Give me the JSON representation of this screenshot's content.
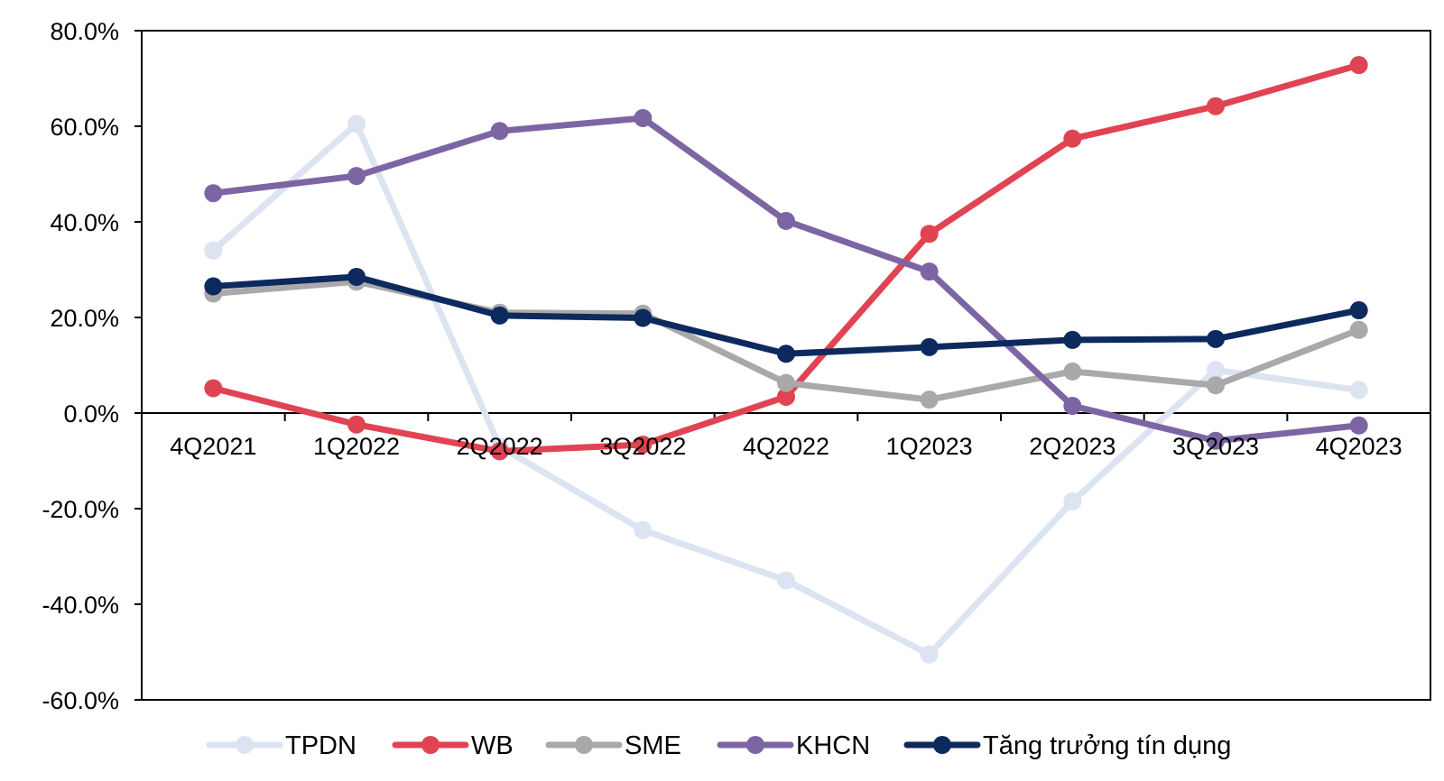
{
  "chart_data": {
    "type": "line",
    "categories": [
      "4Q2021",
      "1Q2022",
      "2Q2022",
      "3Q2022",
      "4Q2022",
      "1Q2023",
      "2Q2023",
      "3Q2023",
      "4Q2023"
    ],
    "ylim": [
      -60,
      80
    ],
    "yticks": [
      -60,
      -40,
      -20,
      0,
      20,
      40,
      60,
      80
    ],
    "ytick_labels": [
      "-60.0%",
      "-40.0%",
      "-20.0%",
      "0.0%",
      "20.0%",
      "40.0%",
      "60.0%",
      "80.0%"
    ],
    "grid": false,
    "legend_position": "bottom",
    "series": [
      {
        "name": "TPDN",
        "color": "#dce3f1",
        "values": [
          34.0,
          60.5,
          -7.0,
          -24.5,
          -35.0,
          -50.5,
          -18.5,
          9.0,
          4.8
        ]
      },
      {
        "name": "WB",
        "color": "#e04453",
        "values": [
          5.2,
          -2.4,
          -8.0,
          -6.6,
          3.4,
          37.5,
          57.4,
          64.2,
          72.8
        ]
      },
      {
        "name": "SME",
        "color": "#a9a9a9",
        "values": [
          25.0,
          27.5,
          21.0,
          20.8,
          6.3,
          2.8,
          8.7,
          5.8,
          17.4
        ]
      },
      {
        "name": "KHCN",
        "color": "#7d65a3",
        "values": [
          46.0,
          49.6,
          59.0,
          61.7,
          40.2,
          29.6,
          1.5,
          -5.8,
          -2.6
        ]
      },
      {
        "name": "Tăng trưởng tín dụng",
        "color": "#0d2a5f",
        "values": [
          26.5,
          28.5,
          20.4,
          19.9,
          12.4,
          13.8,
          15.3,
          15.5,
          21.5
        ]
      }
    ]
  }
}
